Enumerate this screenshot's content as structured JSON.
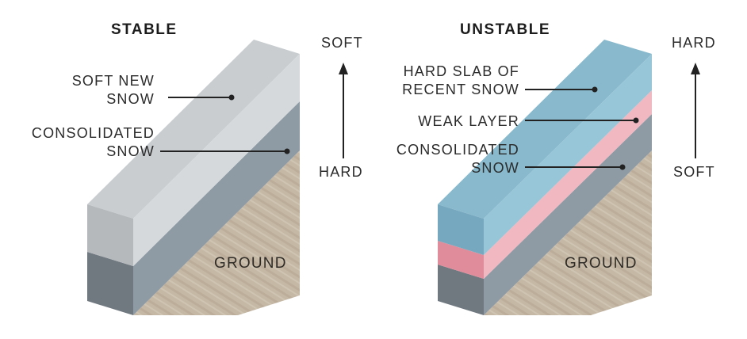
{
  "panels": {
    "stable": {
      "title": "STABLE",
      "layers": {
        "soft_new_snow": {
          "line1": "SOFT NEW",
          "line2": "SNOW"
        },
        "consolidated_snow": {
          "line1": "CONSOLIDATED",
          "line2": "SNOW"
        }
      },
      "ground": "GROUND",
      "arrow": {
        "top": "SOFT",
        "bottom": "HARD"
      }
    },
    "unstable": {
      "title": "UNSTABLE",
      "layers": {
        "hard_slab": {
          "line1": "HARD SLAB OF",
          "line2": "RECENT SNOW"
        },
        "weak_layer": {
          "line1": "WEAK LAYER"
        },
        "consolidated_snow": {
          "line1": "CONSOLIDATED",
          "line2": "SNOW"
        }
      },
      "ground": "GROUND",
      "arrow": {
        "top": "HARD",
        "bottom": "SOFT"
      }
    }
  },
  "colors": {
    "soft_snow": "#d3d7d9",
    "consolidated_snow": "#8e9aa4",
    "hard_slab": "#95c3d5",
    "weak_layer": "#f0b4bf",
    "ground": "#c6b9a6",
    "text": "#2b2b2b"
  }
}
